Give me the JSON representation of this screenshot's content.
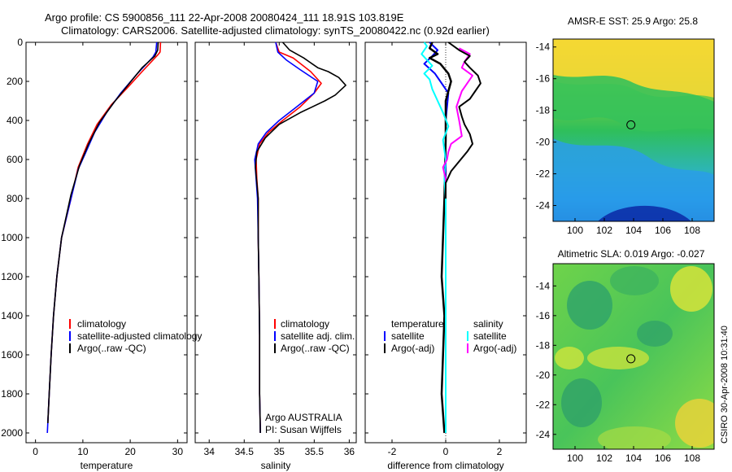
{
  "header": {
    "line1": "Argo profile: CS 5900856_111 22-Apr-2008 20080424_111 18.91S 103.819E",
    "line2": "Climatology: CARS2006. Satellite-adjusted climatology: synTS_20080422.nc (0.92d earlier)"
  },
  "side_stamp": "CSIRO 30-Apr-2008 10:31:40",
  "colors": {
    "climatology": "#ff0000",
    "satellite": "#0000ff",
    "argo": "#000000",
    "satellite_diff": "#00ffff",
    "argo_salt_diff": "#ff00ff"
  },
  "chart_data": [
    {
      "type": "line",
      "id": "temperature",
      "xlabel": "temperature",
      "ylabel": "",
      "xlim": [
        -2,
        32
      ],
      "ylim": [
        2050,
        0
      ],
      "xticks": [
        0,
        10,
        20,
        30
      ],
      "yticks": [
        0,
        200,
        400,
        600,
        800,
        1000,
        1200,
        1400,
        1600,
        1800,
        2000
      ],
      "legend": {
        "position": "bottom-right",
        "entries": [
          "climatology",
          "satellite-adjusted climatology",
          "Argo(..raw -QC)"
        ]
      },
      "series": [
        {
          "name": "climatology",
          "color": "#ff0000",
          "points": [
            [
              26.4,
              0
            ],
            [
              26.3,
              50
            ],
            [
              25.8,
              65
            ],
            [
              22.5,
              150
            ],
            [
              19.5,
              230
            ],
            [
              16,
              320
            ],
            [
              13,
              420
            ],
            [
              11,
              520
            ],
            [
              9,
              640
            ],
            [
              7.5,
              800
            ],
            [
              5.5,
              1000
            ],
            [
              4.5,
              1200
            ],
            [
              3.8,
              1400
            ],
            [
              3.3,
              1600
            ],
            [
              2.9,
              1800
            ],
            [
              2.6,
              1950
            ]
          ]
        },
        {
          "name": "satellite-adjusted climatology",
          "color": "#0000ff",
          "points": [
            [
              25.6,
              0
            ],
            [
              25.4,
              50
            ],
            [
              24.8,
              75
            ],
            [
              21.5,
              160
            ],
            [
              18,
              260
            ],
            [
              15,
              360
            ],
            [
              12.5,
              460
            ],
            [
              10.5,
              570
            ],
            [
              9,
              650
            ],
            [
              7.5,
              800
            ],
            [
              5.5,
              1000
            ],
            [
              4.5,
              1200
            ],
            [
              3.8,
              1400
            ],
            [
              3.3,
              1600
            ],
            [
              2.9,
              1800
            ],
            [
              2.5,
              2000
            ]
          ]
        },
        {
          "name": "Argo(..raw -QC)",
          "color": "#000000",
          "points": [
            [
              25.9,
              0
            ],
            [
              25.8,
              40
            ],
            [
              25.2,
              70
            ],
            [
              22.5,
              130
            ],
            [
              19.5,
              220
            ],
            [
              16.5,
              310
            ],
            [
              13.5,
              410
            ],
            [
              11.2,
              520
            ],
            [
              9.3,
              630
            ],
            [
              7.5,
              780
            ],
            [
              5.5,
              1000
            ],
            [
              4.5,
              1200
            ],
            [
              3.8,
              1400
            ],
            [
              3.3,
              1600
            ],
            [
              2.9,
              1800
            ],
            [
              2.6,
              1950
            ]
          ]
        }
      ]
    },
    {
      "type": "line",
      "id": "salinity",
      "xlabel": "salinity",
      "ylabel": "",
      "xlim": [
        33.8,
        36.1
      ],
      "ylim": [
        2050,
        0
      ],
      "xticks": [
        34,
        34.5,
        35,
        35.5,
        36
      ],
      "legend": {
        "position": "bottom-right",
        "entries": [
          "climatology",
          "satellite adj. clim.",
          "Argo(..raw -QC)"
        ]
      },
      "annotation": [
        "Argo AUSTRALIA",
        "PI: Susan Wijffels"
      ],
      "series": [
        {
          "name": "climatology",
          "color": "#ff0000",
          "points": [
            [
              34.95,
              0
            ],
            [
              35.0,
              50
            ],
            [
              35.2,
              80
            ],
            [
              35.45,
              150
            ],
            [
              35.6,
              210
            ],
            [
              35.5,
              260
            ],
            [
              35.3,
              330
            ],
            [
              35.05,
              400
            ],
            [
              34.85,
              460
            ],
            [
              34.72,
              520
            ],
            [
              34.67,
              600
            ],
            [
              34.68,
              700
            ],
            [
              34.7,
              800
            ],
            [
              34.7,
              1000
            ],
            [
              34.71,
              1200
            ],
            [
              34.72,
              1500
            ],
            [
              34.72,
              1800
            ],
            [
              34.73,
              2000
            ]
          ]
        },
        {
          "name": "satellite adj. clim.",
          "color": "#0000ff",
          "points": [
            [
              34.95,
              0
            ],
            [
              34.98,
              50
            ],
            [
              35.1,
              90
            ],
            [
              35.3,
              140
            ],
            [
              35.55,
              200
            ],
            [
              35.5,
              260
            ],
            [
              35.25,
              330
            ],
            [
              35.0,
              400
            ],
            [
              34.82,
              460
            ],
            [
              34.7,
              520
            ],
            [
              34.65,
              600
            ],
            [
              34.67,
              700
            ],
            [
              34.69,
              800
            ],
            [
              34.7,
              1000
            ],
            [
              34.71,
              1200
            ],
            [
              34.72,
              1500
            ],
            [
              34.72,
              1800
            ],
            [
              34.73,
              2000
            ]
          ]
        },
        {
          "name": "Argo(..raw -QC)",
          "color": "#000000",
          "points": [
            [
              35.05,
              0
            ],
            [
              35.15,
              40
            ],
            [
              35.35,
              80
            ],
            [
              35.55,
              130
            ],
            [
              35.7,
              150
            ],
            [
              35.85,
              180
            ],
            [
              35.95,
              220
            ],
            [
              35.8,
              270
            ],
            [
              35.65,
              300
            ],
            [
              35.3,
              360
            ],
            [
              35.0,
              420
            ],
            [
              34.8,
              490
            ],
            [
              34.68,
              560
            ],
            [
              34.66,
              640
            ],
            [
              34.68,
              720
            ],
            [
              34.7,
              800
            ],
            [
              34.7,
              1000
            ],
            [
              34.71,
              1200
            ],
            [
              34.72,
              1500
            ],
            [
              34.72,
              1800
            ],
            [
              34.73,
              2000
            ]
          ]
        }
      ]
    },
    {
      "type": "line",
      "id": "difference",
      "xlabel": "difference from climatology",
      "ylabel": "",
      "xlim": [
        -3,
        3
      ],
      "ylim": [
        2050,
        0
      ],
      "xticks": [
        -2,
        0,
        2
      ],
      "legend": {
        "position": "bottom",
        "entries": [
          "temperature",
          "satellite",
          "Argo(-adj)",
          "salinity",
          "satellite",
          "Argo(-adj)"
        ]
      },
      "series": [
        {
          "name": "temperature satellite",
          "color": "#0000ff",
          "points": [
            [
              -0.6,
              0
            ],
            [
              -0.3,
              40
            ],
            [
              -0.5,
              70
            ],
            [
              -0.8,
              110
            ],
            [
              -0.4,
              160
            ],
            [
              -0.2,
              200
            ],
            [
              0.1,
              260
            ],
            [
              0,
              400
            ],
            [
              0,
              600
            ],
            [
              0,
              800
            ],
            [
              0,
              1000
            ],
            [
              0,
              1500
            ],
            [
              0,
              2000
            ]
          ]
        },
        {
          "name": "temperature Argo(-adj)",
          "color": "#000000",
          "points": [
            [
              -0.5,
              0
            ],
            [
              -0.6,
              30
            ],
            [
              -0.3,
              60
            ],
            [
              -0.6,
              80
            ],
            [
              -0.2,
              110
            ],
            [
              0.1,
              160
            ],
            [
              0.2,
              200
            ],
            [
              0,
              300
            ],
            [
              0,
              500
            ],
            [
              -0.05,
              800
            ],
            [
              -0.1,
              1000
            ],
            [
              -0.15,
              1200
            ],
            [
              -0.05,
              1400
            ],
            [
              -0.1,
              1600
            ],
            [
              -0.15,
              1800
            ],
            [
              -0.05,
              2000
            ]
          ]
        },
        {
          "name": "salinity satellite",
          "color": "#00ffff",
          "points": [
            [
              -0.8,
              0
            ],
            [
              -0.7,
              20
            ],
            [
              -0.9,
              60
            ],
            [
              -0.5,
              120
            ],
            [
              -0.8,
              160
            ],
            [
              -0.6,
              190
            ],
            [
              -0.5,
              240
            ],
            [
              -0.3,
              300
            ],
            [
              -0.1,
              360
            ],
            [
              0.1,
              430
            ],
            [
              -0.1,
              500
            ],
            [
              0,
              600
            ],
            [
              -0.05,
              700
            ],
            [
              0,
              800
            ],
            [
              0,
              1000
            ],
            [
              0,
              1500
            ],
            [
              0,
              2000
            ]
          ]
        },
        {
          "name": "salinity Argo(-adj)",
          "color": "#ff00ff",
          "points": [
            [
              0.5,
              30
            ],
            [
              0.9,
              60
            ],
            [
              0.7,
              100
            ],
            [
              0.6,
              130
            ],
            [
              1.0,
              170
            ],
            [
              0.8,
              210
            ],
            [
              0.6,
              250
            ],
            [
              0.4,
              330
            ],
            [
              0.5,
              400
            ],
            [
              0.6,
              480
            ],
            [
              0.2,
              520
            ],
            [
              0.1,
              560
            ],
            [
              0.05,
              600
            ],
            [
              -0.1,
              640
            ],
            [
              0,
              700
            ],
            [
              0,
              800
            ]
          ]
        },
        {
          "name": "salinity Argo-clim",
          "color": "#000000",
          "points": [
            [
              0.1,
              0
            ],
            [
              0.5,
              40
            ],
            [
              0.9,
              70
            ],
            [
              0.7,
              100
            ],
            [
              0.9,
              130
            ],
            [
              1.2,
              170
            ],
            [
              1.3,
              210
            ],
            [
              1.1,
              250
            ],
            [
              0.9,
              290
            ],
            [
              0.5,
              330
            ],
            [
              0.6,
              380
            ],
            [
              0.7,
              420
            ],
            [
              0.9,
              470
            ],
            [
              1.0,
              520
            ],
            [
              0.8,
              560
            ],
            [
              0.5,
              610
            ],
            [
              0.2,
              660
            ],
            [
              0,
              720
            ],
            [
              0,
              800
            ]
          ]
        }
      ]
    },
    {
      "type": "heatmap",
      "id": "sst_map",
      "title": "AMSR-E SST: 25.9 Argo: 25.8",
      "xlim": [
        98.5,
        109.5
      ],
      "ylim": [
        -25,
        -13.5
      ],
      "xticks": [
        100,
        102,
        104,
        106,
        108
      ],
      "yticks": [
        -14,
        -16,
        -18,
        -20,
        -22,
        -24
      ],
      "marker": [
        103.819,
        -18.91
      ]
    },
    {
      "type": "heatmap",
      "id": "sla_map",
      "title": "Altimetric SLA: 0.019 Argo: -0.027",
      "xlim": [
        98.5,
        109.5
      ],
      "ylim": [
        -25,
        -12.5
      ],
      "xticks": [
        100,
        102,
        104,
        106,
        108
      ],
      "yticks": [
        -14,
        -16,
        -18,
        -20,
        -22,
        -24
      ],
      "marker": [
        103.819,
        -18.91
      ]
    }
  ]
}
